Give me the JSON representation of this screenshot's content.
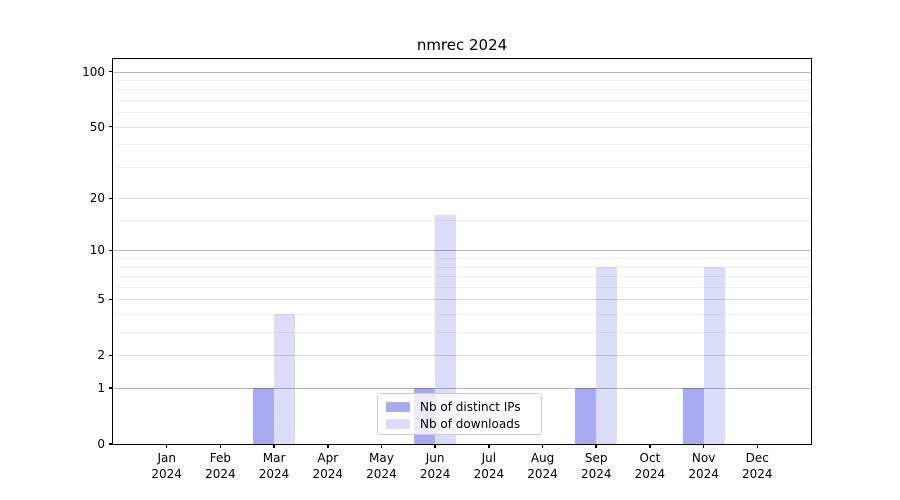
{
  "chart_data": {
    "type": "bar",
    "title": "nmrec 2024",
    "categories": [
      "Jan",
      "Feb",
      "Mar",
      "Apr",
      "May",
      "Jun",
      "Jul",
      "Aug",
      "Sep",
      "Oct",
      "Nov",
      "Dec"
    ],
    "year_label": "2024",
    "series": [
      {
        "name": "Nb of distinct IPs",
        "color": "#a8abf2",
        "values": [
          0,
          0,
          1,
          0,
          0,
          1,
          0,
          0,
          1,
          0,
          1,
          0
        ]
      },
      {
        "name": "Nb of downloads",
        "color": "#dbddf8",
        "values": [
          0,
          0,
          4,
          0,
          0,
          16,
          0,
          0,
          8,
          0,
          8,
          0
        ]
      }
    ],
    "yscale": "log1p",
    "ylim": [
      0,
      117
    ],
    "yticks": [
      0,
      1,
      2,
      5,
      10,
      20,
      50,
      100
    ],
    "gridlines": {
      "major": [
        1,
        10,
        100
      ],
      "mid": [
        2,
        5,
        20,
        50
      ],
      "minor": [
        3,
        4,
        6,
        7,
        8,
        9,
        15,
        30,
        40,
        60,
        70,
        80,
        90
      ]
    },
    "grid": "on",
    "legend_position": "lower center",
    "xlabel": "",
    "ylabel": ""
  }
}
